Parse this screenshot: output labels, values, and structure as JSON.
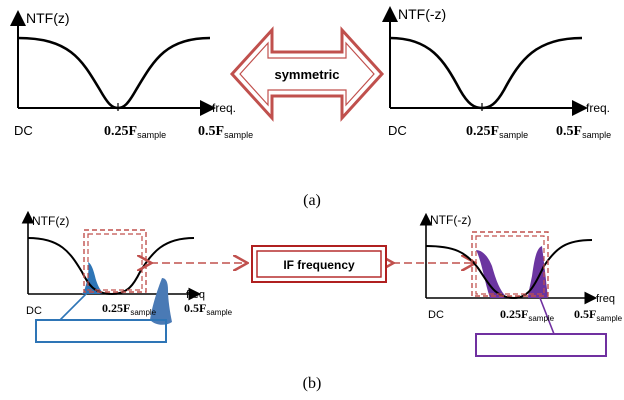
{
  "panel_a": {
    "caption": "(a)",
    "center_label": "symmetric",
    "left_plot": {
      "ylabel": "NTF(z)",
      "xlabel": "freq.",
      "tick_dc": "DC",
      "tick_mid_main": "0.25F",
      "tick_mid_sub": "sample",
      "tick_end_main": "0.5F",
      "tick_end_sub": "sample"
    },
    "right_plot": {
      "ylabel": "NTF(-z)",
      "xlabel": "freq.",
      "tick_dc": "DC",
      "tick_mid_main": "0.25F",
      "tick_mid_sub": "sample",
      "tick_end_main": "0.5F",
      "tick_end_sub": "sample"
    }
  },
  "panel_b": {
    "caption": "(b)",
    "center_label": "IF frequency",
    "left_plot": {
      "ylabel": "NTF(z)",
      "xlabel": "freq",
      "tick_dc": "DC",
      "tick_mid_main": "0.25F",
      "tick_mid_sub": "sample",
      "tick_end_main": "0.5F",
      "tick_end_sub": "sample",
      "fill_color": "#4a7ab5"
    },
    "right_plot": {
      "ylabel": "NTF(-z)",
      "xlabel": "freq",
      "tick_dc": "DC",
      "tick_mid_main": "0.25F",
      "tick_mid_sub": "sample",
      "tick_end_main": "0.5F",
      "tick_end_sub": "sample",
      "fill_color": "#6b35a0"
    }
  },
  "colors": {
    "arrow_outline": "#c0504d",
    "dashed": "#c0504d",
    "dark_red": "#b02020",
    "left_box": "#2e75b6",
    "right_box": "#7030a0"
  }
}
